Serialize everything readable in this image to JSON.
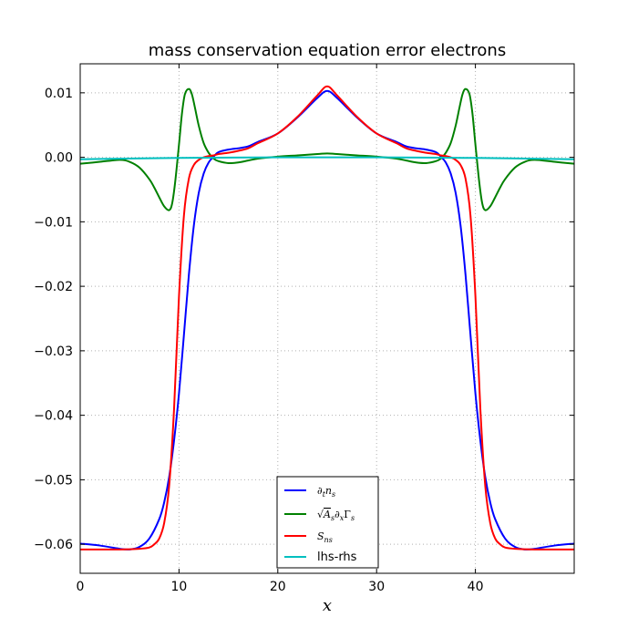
{
  "chart_data": {
    "type": "line",
    "title": "mass conservation equation error electrons",
    "xlabel": "x",
    "ylabel": "",
    "xlim": [
      0,
      50
    ],
    "ylim": [
      -0.0645,
      0.0145
    ],
    "xticks": [
      0,
      10,
      20,
      30,
      40
    ],
    "xtick_labels": [
      "0",
      "10",
      "20",
      "30",
      "40"
    ],
    "yticks": [
      0.01,
      0.0,
      -0.01,
      -0.02,
      -0.03,
      -0.04,
      -0.05,
      -0.06
    ],
    "ytick_labels": [
      "0.01",
      "0.00",
      "−0.01",
      "−0.02",
      "−0.03",
      "−0.04",
      "−0.05",
      "−0.06"
    ],
    "grid": true,
    "legend_position": "lower-center",
    "series": [
      {
        "name": "∂tns",
        "color": "#0000ff",
        "x": [
          0,
          2,
          4,
          5,
          6,
          7,
          8,
          8.5,
          9,
          9.5,
          10,
          10.5,
          11,
          11.5,
          12,
          12.5,
          13,
          13.5,
          14,
          15,
          16,
          17,
          18,
          20,
          22,
          24,
          25,
          26,
          28,
          30,
          32,
          33,
          34,
          35,
          36,
          36.5,
          37,
          37.5,
          38,
          38.5,
          39,
          39.5,
          40,
          40.5,
          41,
          41.5,
          42,
          43,
          44,
          45,
          46,
          48,
          50
        ],
        "y": [
          -0.0599,
          -0.0602,
          -0.0607,
          -0.0608,
          -0.0604,
          -0.0591,
          -0.0561,
          -0.0535,
          -0.0496,
          -0.0439,
          -0.0366,
          -0.0275,
          -0.0182,
          -0.0106,
          -0.0055,
          -0.0025,
          -0.0008,
          0.0001,
          0.0008,
          0.0012,
          0.0014,
          0.0017,
          0.0024,
          0.0037,
          0.0062,
          0.0092,
          0.0103,
          0.0092,
          0.0062,
          0.0037,
          0.0024,
          0.0017,
          0.0014,
          0.0012,
          0.0008,
          0.0001,
          -0.0008,
          -0.0025,
          -0.0055,
          -0.0106,
          -0.0182,
          -0.0275,
          -0.0366,
          -0.0439,
          -0.0496,
          -0.0535,
          -0.0561,
          -0.0591,
          -0.0604,
          -0.0608,
          -0.0607,
          -0.0602,
          -0.0599
        ]
      },
      {
        "name": "√As∂xΓs",
        "color": "#008000",
        "x": [
          0,
          2,
          4,
          5,
          6,
          7,
          7.5,
          8,
          8.5,
          9,
          9.3,
          9.6,
          10,
          10.3,
          10.6,
          11,
          11.3,
          11.6,
          12,
          12.5,
          13,
          13.5,
          14,
          15,
          16,
          17,
          18,
          20,
          22,
          24,
          25,
          26,
          28,
          30,
          32,
          33,
          34,
          35,
          36,
          36.5,
          37,
          37.5,
          38,
          38.4,
          38.7,
          39,
          39.4,
          39.7,
          40,
          40.4,
          40.7,
          41,
          41.5,
          42,
          42.5,
          43,
          44,
          45,
          46,
          48,
          50
        ],
        "y": [
          -0.001,
          -0.0007,
          -0.0004,
          -0.0007,
          -0.0016,
          -0.0034,
          -0.0047,
          -0.0062,
          -0.0076,
          -0.0082,
          -0.0072,
          -0.004,
          0.002,
          0.0068,
          0.0098,
          0.0106,
          0.0098,
          0.0078,
          0.0049,
          0.0022,
          0.0007,
          -0.0002,
          -0.0006,
          -0.0009,
          -0.0008,
          -0.0005,
          -0.0002,
          0.0001,
          0.0003,
          0.0005,
          0.0006,
          0.0005,
          0.0003,
          0.0001,
          -0.0002,
          -0.0005,
          -0.0008,
          -0.0009,
          -0.0006,
          -0.0002,
          0.0007,
          0.0022,
          0.0049,
          0.0078,
          0.0098,
          0.0106,
          0.0098,
          0.0068,
          0.002,
          -0.004,
          -0.0072,
          -0.0082,
          -0.0076,
          -0.0062,
          -0.0047,
          -0.0034,
          -0.0016,
          -0.0007,
          -0.0004,
          -0.0007,
          -0.001
        ]
      },
      {
        "name": "Sns",
        "color": "#ff0000",
        "x": [
          0,
          4,
          6,
          7,
          7.5,
          8,
          8.5,
          9,
          9.5,
          10,
          10.5,
          11,
          11.5,
          12,
          12.5,
          13,
          13.5,
          14,
          15,
          16,
          17,
          18,
          20,
          22,
          24,
          25,
          26,
          28,
          30,
          32,
          33,
          34,
          35,
          36,
          36.5,
          37,
          37.5,
          38,
          38.5,
          39,
          39.5,
          40,
          40.5,
          41,
          41.5,
          42,
          42.5,
          43,
          44,
          46,
          50
        ],
        "y": [
          -0.0608,
          -0.0608,
          -0.0607,
          -0.0605,
          -0.06,
          -0.0591,
          -0.0567,
          -0.051,
          -0.039,
          -0.0215,
          -0.009,
          -0.0033,
          -0.0012,
          -0.0004,
          0.0,
          0.0002,
          0.0003,
          0.0005,
          0.0007,
          0.001,
          0.0014,
          0.0022,
          0.0037,
          0.0063,
          0.0096,
          0.011,
          0.0096,
          0.0063,
          0.0037,
          0.0022,
          0.0014,
          0.001,
          0.0007,
          0.0005,
          0.0003,
          0.0002,
          0.0,
          -0.0004,
          -0.0012,
          -0.0033,
          -0.009,
          -0.0215,
          -0.039,
          -0.051,
          -0.0567,
          -0.0591,
          -0.06,
          -0.0605,
          -0.0607,
          -0.0608,
          -0.0608
        ]
      },
      {
        "name": "lhs-rhs",
        "color": "#00bfbf",
        "x": [
          0,
          10,
          20,
          25,
          30,
          40,
          50
        ],
        "y": [
          -0.0003,
          -0.0001,
          0.0,
          0.0,
          0.0,
          -0.0001,
          -0.0003
        ]
      }
    ]
  }
}
